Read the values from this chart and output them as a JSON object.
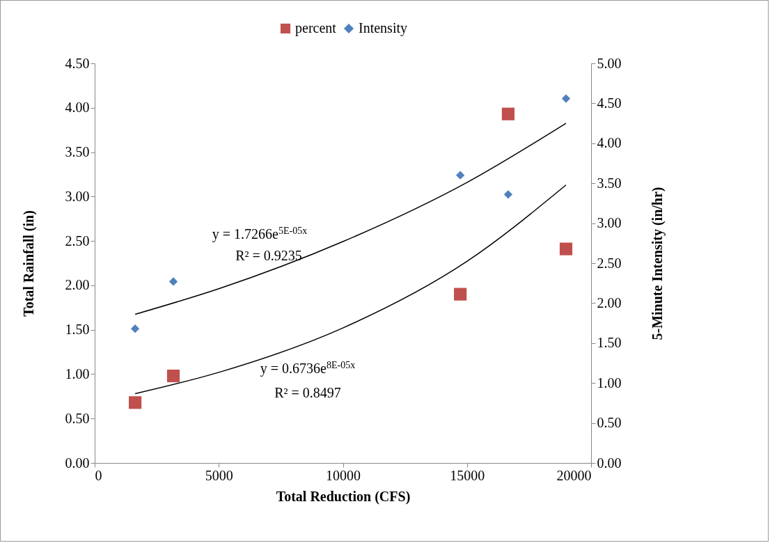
{
  "chart_data": {
    "type": "scatter",
    "xlabel": "Total Reduction (CFS)",
    "ylabel": "Total Rainfall (in)",
    "y2label": "5-Minute Intensity (in/hr)",
    "xlim": [
      0,
      20000
    ],
    "xticks": [
      0,
      5000,
      10000,
      15000,
      20000
    ],
    "ylim": [
      0,
      4.5
    ],
    "yticks": [
      {
        "value": 0,
        "label": "0.00"
      },
      {
        "value": 0.5,
        "label": "0.50"
      },
      {
        "value": 1,
        "label": "1.00"
      },
      {
        "value": 1.5,
        "label": "1.50"
      },
      {
        "value": 2,
        "label": "2.00"
      },
      {
        "value": 2.5,
        "label": "2.50"
      },
      {
        "value": 3,
        "label": "3.00"
      },
      {
        "value": 3.5,
        "label": "3.50"
      },
      {
        "value": 4,
        "label": "4.00"
      },
      {
        "value": 4.5,
        "label": "4.50"
      }
    ],
    "y2lim": [
      0,
      5
    ],
    "y2ticks": [
      {
        "value": 0,
        "label": "0.00"
      },
      {
        "value": 0.5,
        "label": "0.50"
      },
      {
        "value": 1,
        "label": "1.00"
      },
      {
        "value": 1.5,
        "label": "1.50"
      },
      {
        "value": 2,
        "label": "2.00"
      },
      {
        "value": 2.5,
        "label": "2.50"
      },
      {
        "value": 3,
        "label": "3.00"
      },
      {
        "value": 3.5,
        "label": "3.50"
      },
      {
        "value": 4,
        "label": "4.00"
      },
      {
        "value": 4.5,
        "label": "4.50"
      },
      {
        "value": 5,
        "label": "5.00"
      }
    ],
    "legend": "top",
    "series": [
      {
        "name": "percent",
        "marker": "square",
        "color": "#c0504d",
        "x": [
          1630,
          3170,
          14730,
          16660,
          18990
        ],
        "values": [
          0.68,
          0.98,
          1.9,
          3.93,
          2.41
        ]
      },
      {
        "name": "Intensity",
        "marker": "diamond",
        "axis": "y2",
        "color": "#4f81bd",
        "x": [
          1630,
          3170,
          14730,
          16660,
          18990
        ],
        "values": [
          1.68,
          2.27,
          3.6,
          3.36,
          4.56
        ]
      },
      {
        "type": "line",
        "color": "#000000",
        "x": [
          1630,
          5000,
          10000,
          15000,
          18990
        ],
        "values": [
          0.78,
          1.02,
          1.52,
          2.27,
          3.13
        ]
      },
      {
        "type": "line",
        "axis": "y2",
        "color": "#000000",
        "x": [
          1630,
          5000,
          10000,
          15000,
          18990
        ],
        "values": [
          1.86,
          2.18,
          2.77,
          3.51,
          4.25
        ]
      }
    ],
    "annotations": [
      "y = 1.7266e$^{5E-05x}$",
      "R² = 0.9235",
      "y = 0.6736e$^{8E-05x}$",
      "R² = 0.8497"
    ]
  }
}
